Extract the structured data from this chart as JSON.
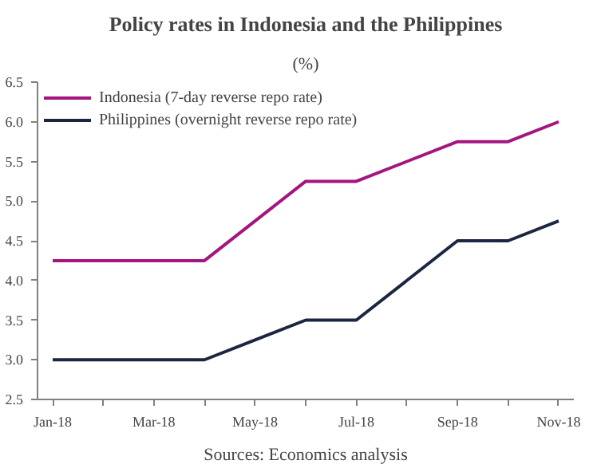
{
  "chart_data": {
    "type": "line",
    "title": "Policy rates in Indonesia and the Philippines",
    "subtitle": "(%)",
    "categories": [
      "Jan-18",
      null,
      "Mar-18",
      null,
      "May-18",
      null,
      "Jul-18",
      null,
      "Sep-18",
      null,
      "Nov-18"
    ],
    "series": [
      {
        "name": "Indonesia (7-day reverse repo rate)",
        "color": "#a3167f",
        "values": [
          4.25,
          4.25,
          4.25,
          4.25,
          4.75,
          5.25,
          5.25,
          5.5,
          5.75,
          5.75,
          6.0
        ]
      },
      {
        "name": "Philippines (overnight reverse repo rate)",
        "color": "#1c2541",
        "values": [
          3.0,
          3.0,
          3.0,
          3.0,
          3.25,
          3.5,
          3.5,
          4.0,
          4.5,
          4.5,
          4.75
        ]
      }
    ],
    "ylim": [
      2.5,
      6.5
    ],
    "yticks": [
      2.5,
      {
        "value": 3,
        "label": "3.0"
      },
      3.5,
      {
        "value": 4,
        "label": "4.0"
      },
      4.5,
      {
        "value": 5,
        "label": "5.0"
      },
      5.5,
      {
        "value": 6,
        "label": "6.0"
      },
      6.5
    ],
    "grid": false,
    "legend": "top left",
    "marker": "none",
    "line_style": "solid",
    "annotations": [
      "Sources: Economics analysis"
    ]
  }
}
